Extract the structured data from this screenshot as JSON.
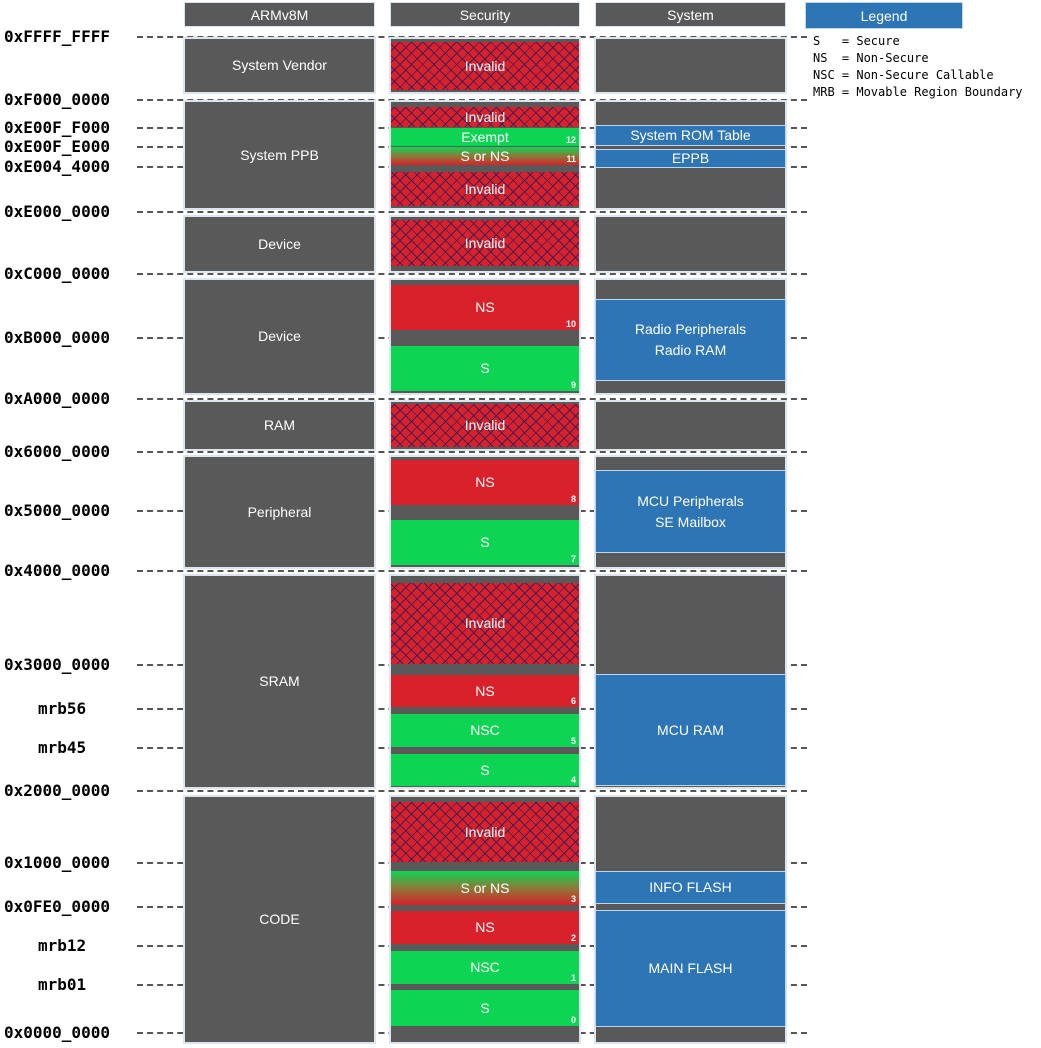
{
  "headers": {
    "armv8m": "ARMv8M",
    "security": "Security",
    "system": "System",
    "legend": "Legend"
  },
  "legend_items": [
    "S   = Secure",
    "NS  = Non-Secure",
    "NSC = Non-Secure Callable",
    "MRB = Movable Region Boundary"
  ],
  "addresses": [
    "0xFFFF_FFFF",
    "0xF000_0000",
    "0xE00F_F000",
    "0xE00F_E000",
    "0xE004_4000",
    "0xE000_0000",
    "0xC000_0000",
    "0xB000_0000",
    "0xA000_0000",
    "0x6000_0000",
    "0x5000_0000",
    "0x4000_0000",
    "0x3000_0000",
    "mrb56",
    "mrb45",
    "0x2000_0000",
    "0x1000_0000",
    "0x0FE0_0000",
    "mrb12",
    "mrb01",
    "0x0000_0000"
  ],
  "armv8m_regions": [
    "System Vendor",
    "System PPB",
    "Device",
    "Device",
    "RAM",
    "Peripheral",
    "SRAM",
    "CODE"
  ],
  "security_labels": {
    "invalid": "Invalid",
    "exempt": "Exempt",
    "s_or_ns": "S or NS",
    "ns": "NS",
    "nsc": "NSC",
    "s": "S"
  },
  "security_indices": [
    "12",
    "11",
    "10",
    "9",
    "8",
    "7",
    "6",
    "5",
    "4",
    "3",
    "2",
    "1",
    "0"
  ],
  "system_regions": {
    "rom_table": "System ROM Table",
    "eppb": "EPPB",
    "radio_1": "Radio Peripherals",
    "radio_2": "Radio RAM",
    "mcu_periph_1": "MCU Peripherals",
    "mcu_periph_2": "SE Mailbox",
    "mcu_ram": "MCU RAM",
    "info_flash": "INFO FLASH",
    "main_flash": "MAIN FLASH"
  },
  "colors": {
    "region_grey": "#595959",
    "system_blue": "#2e75b6",
    "non_secure_red": "#d9212b",
    "secure_green": "#0dd553",
    "invalid_hatch": "#28205a"
  }
}
